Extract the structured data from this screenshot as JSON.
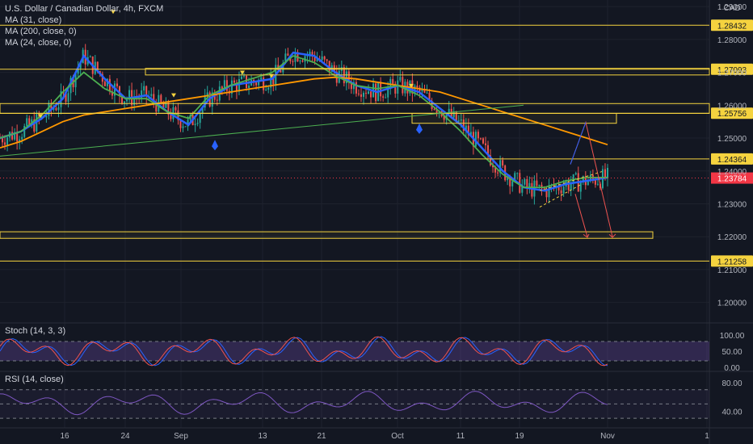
{
  "header": {
    "symbol_line": "U.S. Dollar / Canadian Dollar, 4h, FXCM",
    "indicators": [
      "MA (31, close)",
      "MA (200, close, 0)",
      "MA (24, close, 0)"
    ]
  },
  "price_axis": {
    "currency": "CAD",
    "ticks": [
      "1.29000",
      "1.28000",
      "1.27000",
      "1.26000",
      "1.25000",
      "1.24000",
      "1.23000",
      "1.22000",
      "1.21000",
      "1.20000"
    ],
    "tick_values": [
      1.29,
      1.28,
      1.27,
      1.26,
      1.25,
      1.24,
      1.23,
      1.22,
      1.21,
      1.2
    ]
  },
  "levels": [
    {
      "label": "1.28432",
      "value": 1.28432,
      "style": "box"
    },
    {
      "label": "1.27093",
      "value": 1.27093,
      "style": "box"
    },
    {
      "label": "1.25756",
      "value": 1.25756,
      "style": "box"
    },
    {
      "label": "1.24364",
      "value": 1.24364,
      "style": "box"
    },
    {
      "label": "1.21258",
      "value": 1.21258,
      "style": "box"
    }
  ],
  "current_price": {
    "label": "1.23784",
    "value": 1.23784,
    "color": "#f23645"
  },
  "time_axis": {
    "labels": [
      "16",
      "24",
      "Sep",
      "13",
      "21",
      "Oct",
      "11",
      "19",
      "Nov",
      "1"
    ],
    "x_index": [
      0,
      1,
      2,
      3,
      4,
      5,
      6,
      7,
      8,
      9
    ]
  },
  "stoch_pane": {
    "title": "Stoch (14, 3, 3)",
    "ticks": [
      "100.00",
      "50.00",
      "0.00"
    ],
    "tick_values": [
      100,
      50,
      0
    ],
    "band": [
      20,
      80
    ],
    "band_color": "#7e57c2"
  },
  "rsi_pane": {
    "title": "RSI (14, close)",
    "ticks": [
      "80.00",
      "40.00"
    ],
    "tick_values": [
      80,
      40
    ],
    "band": [
      30,
      70
    ]
  },
  "chart_data": {
    "type": "line",
    "series": [
      {
        "name": "MA (31, close)",
        "color": "#2962ff",
        "values": [
          1.25,
          1.252,
          1.256,
          1.262,
          1.275,
          1.268,
          1.262,
          1.263,
          1.258,
          1.254,
          1.262,
          1.266,
          1.267,
          1.268,
          1.276,
          1.275,
          1.27,
          1.266,
          1.264,
          1.266,
          1.264,
          1.259,
          1.254,
          1.247,
          1.24,
          1.235,
          1.234,
          1.236,
          1.237,
          1.238
        ]
      },
      {
        "name": "MA (200, close, 0)",
        "color": "#ff9800",
        "values": [
          1.247,
          1.249,
          1.252,
          1.255,
          1.257,
          1.258,
          1.259,
          1.26,
          1.261,
          1.262,
          1.263,
          1.264,
          1.265,
          1.266,
          1.267,
          1.268,
          1.2685,
          1.268,
          1.267,
          1.266,
          1.265,
          1.264,
          1.262,
          1.26,
          1.258,
          1.256,
          1.254,
          1.252,
          1.25,
          1.248
        ]
      },
      {
        "name": "MA (24, close, 0)",
        "color": "#4caf50",
        "values": [
          1.25,
          1.252,
          1.257,
          1.264,
          1.27,
          1.265,
          1.262,
          1.262,
          1.258,
          1.256,
          1.263,
          1.266,
          1.268,
          1.27,
          1.275,
          1.273,
          1.269,
          1.266,
          1.265,
          1.266,
          1.263,
          1.258,
          1.252,
          1.245,
          1.239,
          1.235,
          1.235,
          1.237,
          1.238,
          1.238
        ]
      }
    ],
    "yrange": [
      1.195,
      1.292
    ],
    "grid": true
  }
}
